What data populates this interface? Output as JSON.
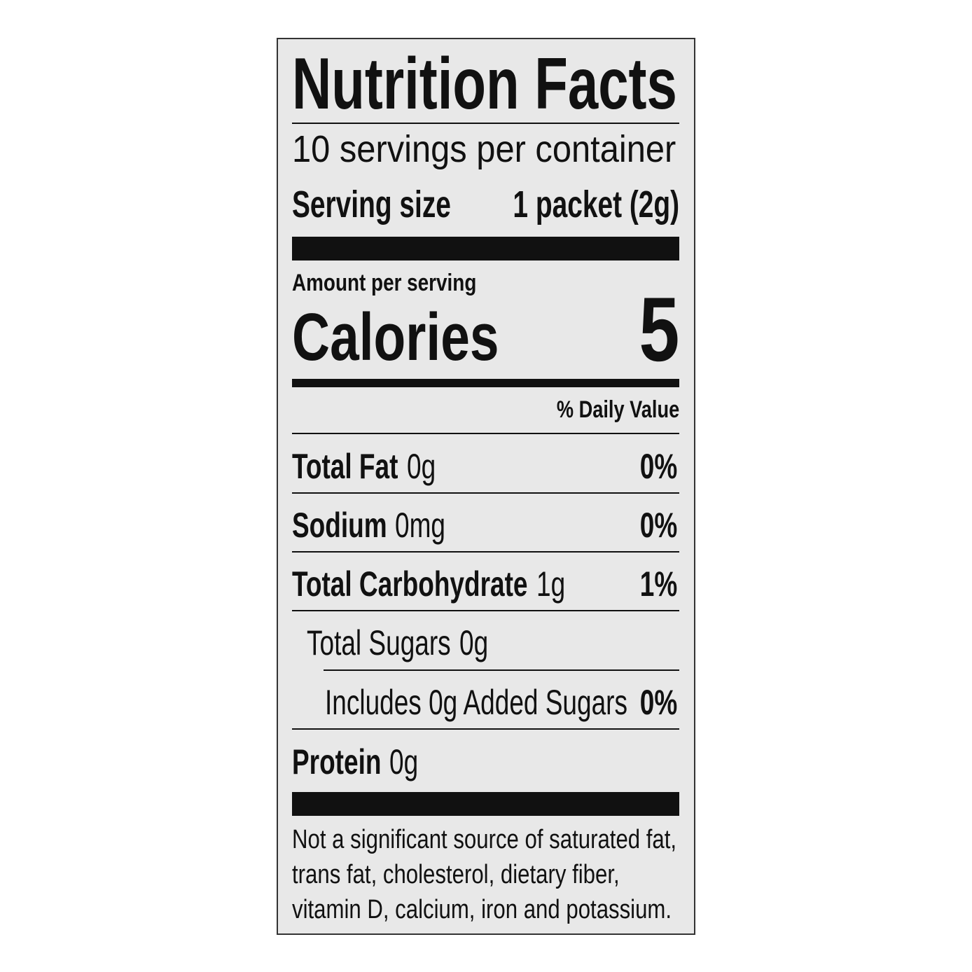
{
  "title": "Nutrition Facts",
  "servings_per_container": "10 servings per container",
  "serving_size": {
    "label": "Serving size",
    "value": "1 packet (2g)"
  },
  "amount_per_serving": "Amount per serving",
  "calories": {
    "label": "Calories",
    "value": 5
  },
  "daily_value_header": "% Daily Value",
  "nutrients": [
    {
      "name": "Total Fat",
      "amount": "0g",
      "dv": "0%"
    },
    {
      "name": "Sodium",
      "amount": "0mg",
      "dv": "0%"
    },
    {
      "name": "Total Carbohydrate",
      "amount": "1g",
      "dv": "1%"
    },
    {
      "name": "Total Sugars",
      "amount": "0g"
    },
    {
      "name": "Includes 0g Added Sugars",
      "dv": "0%"
    },
    {
      "name": "Protein",
      "amount": "0g"
    }
  ],
  "footnote": [
    "Not a significant source of saturated fat,",
    "trans fat, cholesterol, dietary fiber,",
    "vitamin D, calcium, iron and potassium."
  ]
}
